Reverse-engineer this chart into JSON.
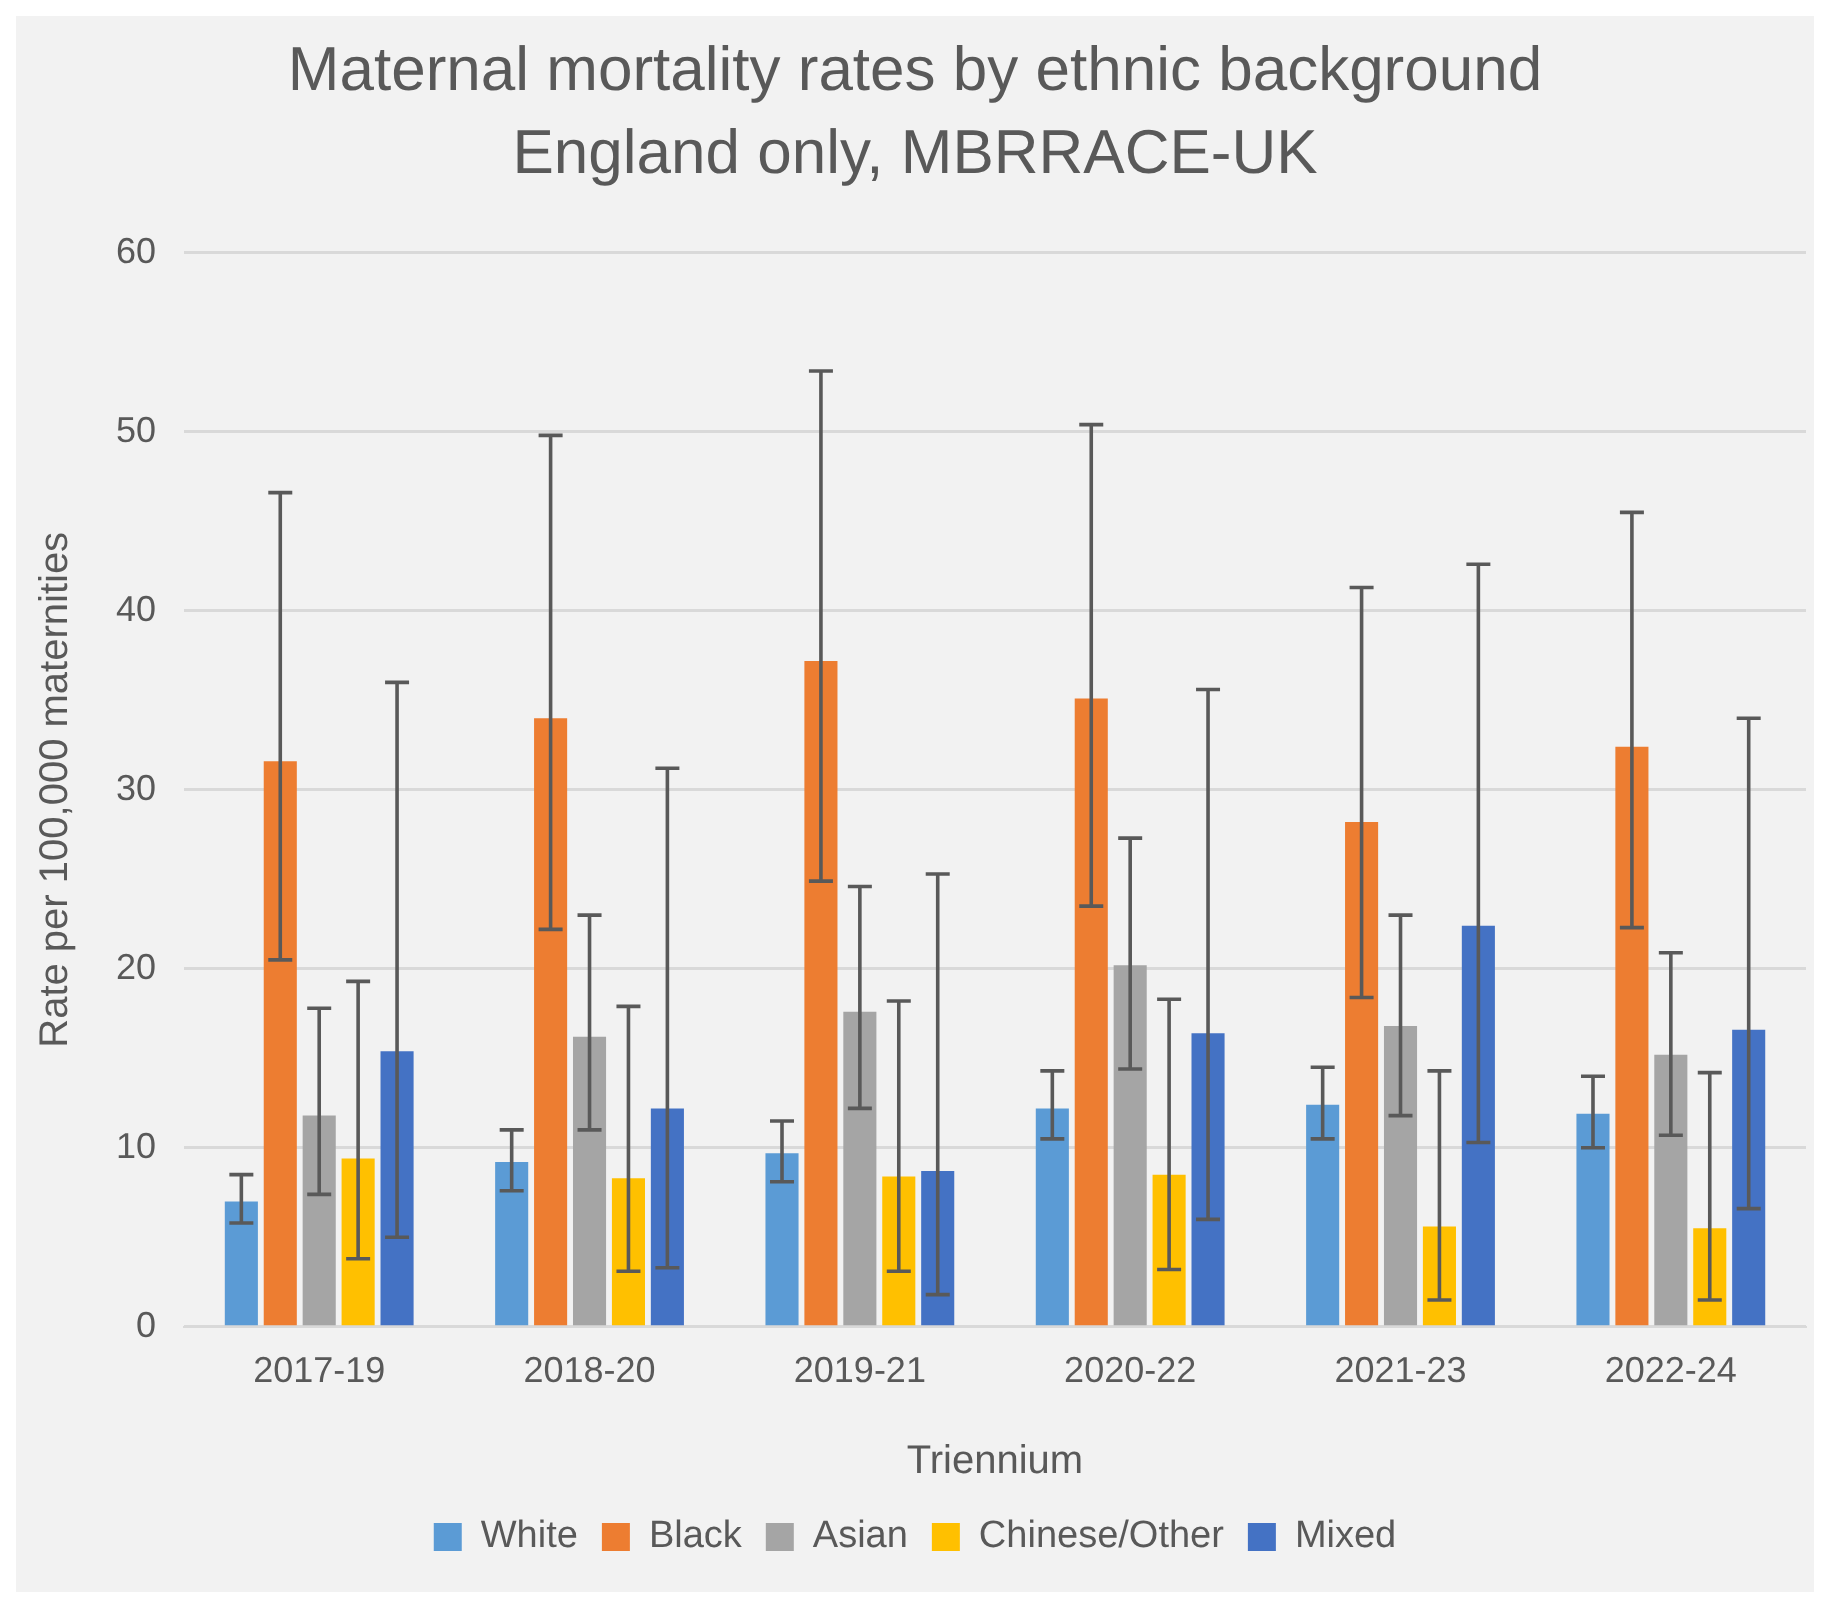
{
  "chart_data": {
    "type": "bar",
    "title": "Maternal mortality rates by ethnic background",
    "subtitle": "England only, MBRRACE-UK",
    "xlabel": "Triennium",
    "ylabel": "Rate per 100,000 maternities",
    "categories": [
      "2017-19",
      "2018-20",
      "2019-21",
      "2020-22",
      "2021-23",
      "2022-24"
    ],
    "series": [
      {
        "name": "White",
        "color": "#5b9bd5",
        "values": [
          7.0,
          9.2,
          9.7,
          12.2,
          12.4,
          11.9
        ],
        "errors": [
          [
            5.8,
            8.5
          ],
          [
            7.6,
            11.0
          ],
          [
            8.1,
            11.5
          ],
          [
            10.5,
            14.3
          ],
          [
            10.5,
            14.5
          ],
          [
            10.0,
            14.0
          ]
        ]
      },
      {
        "name": "Black",
        "color": "#ed7d31",
        "values": [
          31.6,
          34.0,
          37.2,
          35.1,
          28.2,
          32.4
        ],
        "errors": [
          [
            20.5,
            46.6
          ],
          [
            22.2,
            49.8
          ],
          [
            24.9,
            53.4
          ],
          [
            23.5,
            50.4
          ],
          [
            18.4,
            41.3
          ],
          [
            22.3,
            45.5
          ]
        ]
      },
      {
        "name": "Asian",
        "color": "#a5a5a5",
        "values": [
          11.8,
          16.2,
          17.6,
          20.2,
          16.8,
          15.2
        ],
        "errors": [
          [
            7.4,
            17.8
          ],
          [
            11.0,
            23.0
          ],
          [
            12.2,
            24.6
          ],
          [
            14.4,
            27.3
          ],
          [
            11.8,
            23.0
          ],
          [
            10.7,
            20.9
          ]
        ]
      },
      {
        "name": "Chinese/Other",
        "color": "#ffc000",
        "values": [
          9.4,
          8.3,
          8.4,
          8.5,
          5.6,
          5.5
        ],
        "errors": [
          [
            3.8,
            19.3
          ],
          [
            3.1,
            17.9
          ],
          [
            3.1,
            18.2
          ],
          [
            3.2,
            18.3
          ],
          [
            1.5,
            14.3
          ],
          [
            1.5,
            14.2
          ]
        ]
      },
      {
        "name": "Mixed",
        "color": "#4472c4",
        "values": [
          15.4,
          12.2,
          8.7,
          16.4,
          22.4,
          16.6
        ],
        "errors": [
          [
            5.0,
            36.0
          ],
          [
            3.3,
            31.2
          ],
          [
            1.8,
            25.3
          ],
          [
            6.0,
            35.6
          ],
          [
            10.3,
            42.6
          ],
          [
            6.6,
            34.0
          ]
        ]
      }
    ],
    "ylim": [
      0,
      60
    ],
    "yticks": [
      0,
      10,
      20,
      30,
      40,
      50,
      60
    ],
    "grid": "y",
    "legend": "bottom"
  }
}
